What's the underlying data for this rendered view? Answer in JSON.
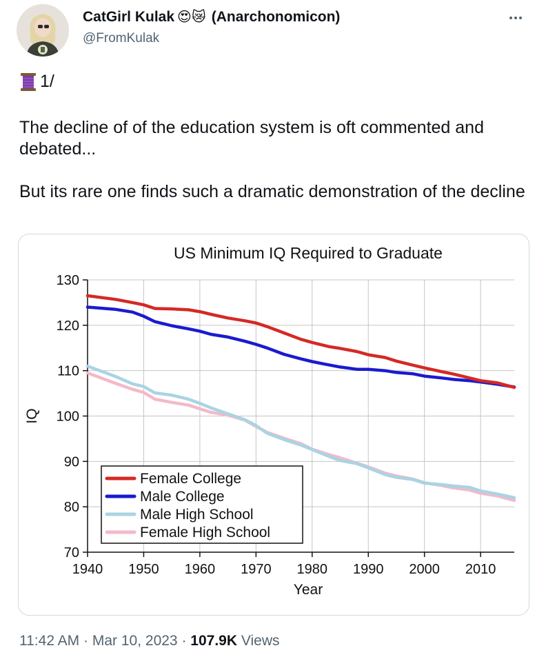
{
  "author": {
    "name": "CatGirl Kulak",
    "name_emoji": "😍😿",
    "name_suffix": "(Anarchonomicon)",
    "handle": "@FromKulak"
  },
  "tweet": {
    "thread_marker": "1/",
    "paragraph_1": "The decline of of the education system is oft commented and debated...",
    "paragraph_2": "But its rare one  finds such a dramatic demonstration of the decline"
  },
  "meta": {
    "time": "11:42 AM",
    "separator": "·",
    "date": "Mar 10, 2023",
    "views_count": "107.9K",
    "views_label": "Views"
  },
  "chart_data": {
    "type": "line",
    "title": "US Minimum IQ Required to Graduate",
    "xlabel": "Year",
    "ylabel": "IQ",
    "xlim": [
      1940,
      2016
    ],
    "ylim": [
      70,
      130
    ],
    "x_ticks": [
      1940,
      1950,
      1960,
      1970,
      1980,
      1990,
      2000,
      2010
    ],
    "y_ticks": [
      70,
      80,
      90,
      100,
      110,
      120,
      130
    ],
    "grid": true,
    "legend_position": "bottom-left",
    "series": [
      {
        "name": "Female College",
        "color": "#d42a24",
        "x": [
          1940,
          1945,
          1948,
          1950,
          1952,
          1955,
          1958,
          1960,
          1962,
          1965,
          1968,
          1970,
          1972,
          1975,
          1978,
          1980,
          1983,
          1985,
          1988,
          1990,
          1993,
          1995,
          1998,
          2000,
          2003,
          2005,
          2008,
          2010,
          2013,
          2016
        ],
        "y": [
          126.5,
          125.7,
          125,
          124.5,
          123.7,
          123.6,
          123.4,
          123,
          122.4,
          121.6,
          121,
          120.5,
          119.7,
          118.3,
          116.9,
          116.2,
          115.3,
          114.9,
          114.2,
          113.5,
          112.9,
          112.1,
          111.2,
          110.6,
          109.8,
          109.3,
          108.4,
          107.8,
          107.3,
          106.3
        ]
      },
      {
        "name": "Male College",
        "color": "#1a1bcd",
        "x": [
          1940,
          1945,
          1948,
          1950,
          1952,
          1955,
          1958,
          1960,
          1962,
          1965,
          1968,
          1970,
          1972,
          1975,
          1978,
          1980,
          1982,
          1985,
          1988,
          1990,
          1993,
          1995,
          1998,
          2000,
          2003,
          2005,
          2008,
          2010,
          2013,
          2016
        ],
        "y": [
          124,
          123.5,
          122.9,
          122,
          120.8,
          119.9,
          119.2,
          118.7,
          118,
          117.4,
          116.5,
          115.8,
          115,
          113.6,
          112.6,
          112,
          111.5,
          110.8,
          110.3,
          110.3,
          110,
          109.6,
          109.3,
          108.8,
          108.4,
          108.1,
          107.8,
          107.5,
          107,
          106.4
        ]
      },
      {
        "name": "Male High School",
        "color": "#a9d4e3",
        "x": [
          1940,
          1945,
          1948,
          1950,
          1952,
          1955,
          1958,
          1960,
          1962,
          1965,
          1968,
          1970,
          1972,
          1975,
          1978,
          1980,
          1983,
          1985,
          1988,
          1990,
          1993,
          1995,
          1998,
          2000,
          2003,
          2005,
          2008,
          2010,
          2013,
          2016
        ],
        "y": [
          111,
          108.7,
          107.1,
          106.5,
          105.1,
          104.6,
          103.7,
          102.8,
          101.8,
          100.5,
          99.2,
          97.9,
          96.2,
          94.8,
          93.6,
          92.6,
          91.1,
          90.2,
          89.5,
          88.6,
          87.1,
          86.5,
          86,
          85.2,
          84.9,
          84.6,
          84.3,
          83.5,
          82.8,
          82
        ]
      },
      {
        "name": "Female High School",
        "color": "#f4b9c8",
        "x": [
          1940,
          1945,
          1948,
          1950,
          1952,
          1955,
          1958,
          1960,
          1962,
          1965,
          1968,
          1970,
          1972,
          1975,
          1978,
          1980,
          1983,
          1985,
          1988,
          1990,
          1993,
          1995,
          1998,
          2000,
          2003,
          2005,
          2008,
          2010,
          2013,
          2016
        ],
        "y": [
          109.5,
          107.2,
          105.9,
          105.2,
          103.7,
          103,
          102.4,
          101.6,
          100.8,
          100.2,
          99.1,
          97.7,
          96.4,
          95.1,
          93.9,
          92.7,
          91.5,
          90.8,
          89.6,
          88.8,
          87.4,
          86.8,
          86.1,
          85.3,
          84.7,
          84.2,
          83.7,
          83,
          82.4,
          81.4
        ]
      }
    ]
  }
}
